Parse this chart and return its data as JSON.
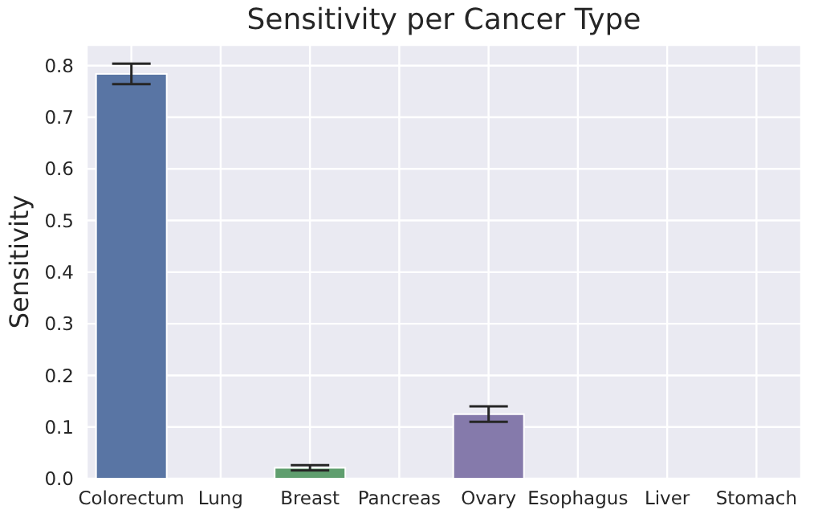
{
  "chart_data": {
    "type": "bar",
    "title": "Sensitivity per Cancer Type",
    "ylabel": "Sensitivity",
    "categories": [
      "Colorectum",
      "Lung",
      "Breast",
      "Pancreas",
      "Ovary",
      "Esophagus",
      "Liver",
      "Stomach"
    ],
    "values": [
      0.784,
      0,
      0.021,
      0,
      0.125,
      0,
      0,
      0
    ],
    "errors": [
      0.02,
      null,
      0.005,
      null,
      0.015,
      null,
      null,
      null
    ],
    "colors": [
      "#5975a4",
      "#5975a4",
      "#5f9e6e",
      "#5f9e6e",
      "#857aab",
      "#857aab",
      "#857aab",
      "#857aab"
    ],
    "ylim": [
      0,
      0.84
    ],
    "yticks": [
      {
        "value": 0,
        "label": "0.0"
      },
      0.1,
      0.2,
      0.3,
      0.4,
      0.5,
      0.6,
      0.7,
      0.8
    ],
    "grid": true
  }
}
